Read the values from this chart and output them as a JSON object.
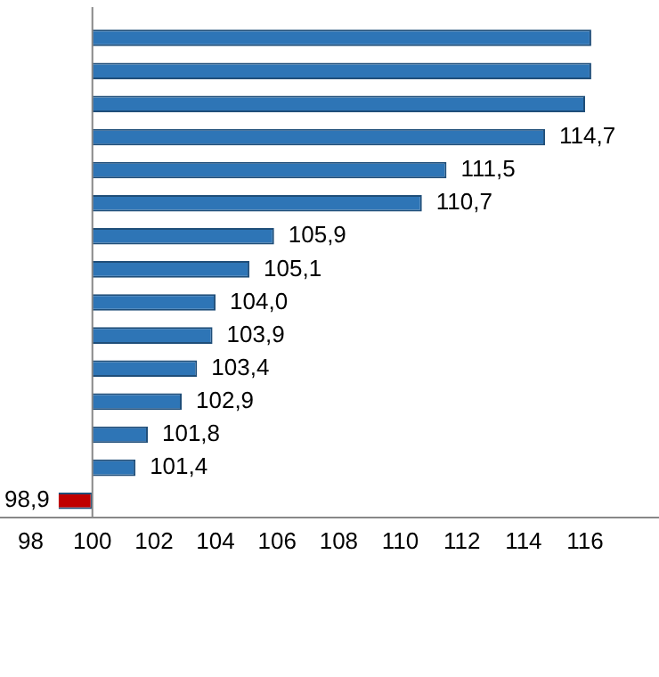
{
  "chart_data": {
    "type": "bar",
    "orientation": "horizontal",
    "categories": [
      null,
      null,
      null,
      null,
      null,
      null,
      null,
      null,
      null,
      null,
      null,
      null,
      null,
      null,
      null
    ],
    "base": [
      100,
      100,
      100,
      100,
      100,
      100,
      100,
      100,
      100,
      100,
      100,
      100,
      100,
      100,
      100
    ],
    "values": [
      16.2,
      16.2,
      16.0,
      14.7,
      11.5,
      10.7,
      5.9,
      5.1,
      4.0,
      3.9,
      3.4,
      2.9,
      1.8,
      1.4,
      -1.1
    ],
    "value_labels": [
      null,
      null,
      null,
      "114,7",
      "111,5",
      "110,7",
      "105,9",
      "105,1",
      "104,0",
      "103,9",
      "103,4",
      "102,9",
      "101,8",
      "101,4",
      "98,9"
    ],
    "colors": [
      "#2e75b6",
      "#2e75b6",
      "#2e75b6",
      "#2e75b6",
      "#2e75b6",
      "#2e75b6",
      "#2e75b6",
      "#2e75b6",
      "#2e75b6",
      "#2e75b6",
      "#2e75b6",
      "#2e75b6",
      "#2e75b6",
      "#2e75b6",
      "#c00000"
    ],
    "xlim": [
      97.0,
      118.4
    ],
    "ref_lines": [
      {
        "axis": "x",
        "value": 100,
        "color": "#888888"
      }
    ],
    "xticks": [
      98,
      100,
      102,
      104,
      106,
      108,
      110,
      112,
      114,
      116
    ],
    "grid": false,
    "legend": false
  }
}
